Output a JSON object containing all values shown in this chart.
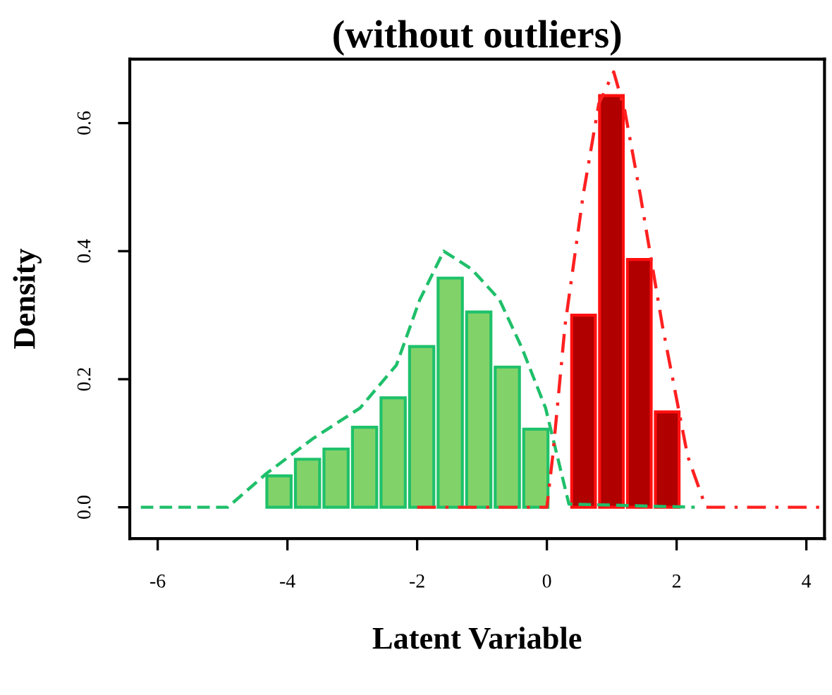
{
  "chart_data": {
    "type": "histogram",
    "title": "(without outliers)",
    "xlabel": "Latent Variable",
    "ylabel": "Density",
    "xlim": [
      -6.43,
      4.28
    ],
    "ylim": [
      -0.049,
      0.7
    ],
    "xticks": [
      -6,
      -4,
      -2,
      0,
      2,
      4
    ],
    "yticks": [
      {
        "value": 0,
        "label": "0.0"
      },
      0.2,
      0.4,
      0.6
    ],
    "grid": false,
    "legend": false,
    "series": [
      {
        "color": "#82d26a",
        "bins": [
          -4.35,
          -3.91,
          -3.47,
          -3.03,
          -2.59,
          -2.15,
          -1.71,
          -1.27,
          -0.83,
          -0.39,
          0.05
        ],
        "values": [
          0.049,
          0.075,
          0.091,
          0.125,
          0.171,
          0.251,
          0.358,
          0.305,
          0.219,
          0.122
        ]
      },
      {
        "color": "#b00000",
        "bins": [
          0.35,
          0.78,
          1.21,
          1.64,
          2.07
        ],
        "values": [
          0.3,
          0.643,
          0.387,
          0.149
        ]
      },
      {
        "type": "line",
        "color": "#1fbf6a",
        "line_style": "dashed",
        "x": [
          -6.26,
          -4.92,
          -4.32,
          -3.61,
          -2.88,
          -2.32,
          -1.96,
          -1.59,
          -1.16,
          -0.73,
          -0.39,
          -0.02,
          0.34,
          2.28
        ],
        "values": [
          0,
          0,
          0.053,
          0.107,
          0.155,
          0.222,
          0.324,
          0.4,
          0.372,
          0.324,
          0.25,
          0.155,
          0.005,
          0
        ]
      },
      {
        "type": "line",
        "color": "#ff2020",
        "line_style": "dashdot",
        "x": [
          -2.0,
          0.0,
          0.09,
          0.28,
          0.56,
          0.8,
          1.03,
          1.2,
          1.44,
          1.78,
          2.17,
          2.45,
          4.28
        ],
        "values": [
          0,
          0,
          0.08,
          0.284,
          0.488,
          0.63,
          0.68,
          0.62,
          0.488,
          0.284,
          0.08,
          0,
          0
        ]
      }
    ]
  }
}
